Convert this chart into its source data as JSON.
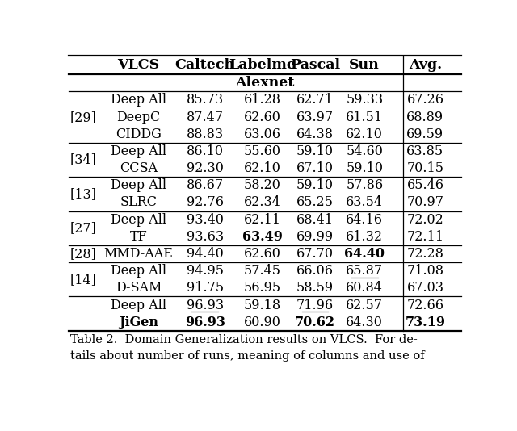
{
  "columns": [
    "VLCS",
    "Caltech",
    "Labelme",
    "Pascal",
    "Sun",
    "Avg."
  ],
  "section_header": "Alexnet",
  "caption": "Table 2.  Domain Generalization results on VLCS.  For de-\ntails about number of runs, meaning of columns and use of",
  "rows": [
    {
      "ref": "",
      "method": "Deep All",
      "caltech": "85.73",
      "labelme": "61.28",
      "pascal": "62.71",
      "sun": "59.33",
      "avg": "67.26",
      "bold_caltech": false,
      "bold_labelme": false,
      "bold_pascal": false,
      "bold_sun": false,
      "bold_avg": false,
      "under_caltech": false,
      "under_labelme": false,
      "under_pascal": false,
      "under_sun": false,
      "under_avg": false,
      "bold_method": false
    },
    {
      "ref": "[29]",
      "method": "DeepC",
      "caltech": "87.47",
      "labelme": "62.60",
      "pascal": "63.97",
      "sun": "61.51",
      "avg": "68.89",
      "bold_caltech": false,
      "bold_labelme": false,
      "bold_pascal": false,
      "bold_sun": false,
      "bold_avg": false,
      "under_caltech": false,
      "under_labelme": false,
      "under_pascal": false,
      "under_sun": false,
      "under_avg": false,
      "bold_method": false
    },
    {
      "ref": "",
      "method": "CIDDG",
      "caltech": "88.83",
      "labelme": "63.06",
      "pascal": "64.38",
      "sun": "62.10",
      "avg": "69.59",
      "bold_caltech": false,
      "bold_labelme": false,
      "bold_pascal": false,
      "bold_sun": false,
      "bold_avg": false,
      "under_caltech": false,
      "under_labelme": false,
      "under_pascal": false,
      "under_sun": false,
      "under_avg": false,
      "bold_method": false
    },
    {
      "ref": "[34]",
      "method": "Deep All",
      "caltech": "86.10",
      "labelme": "55.60",
      "pascal": "59.10",
      "sun": "54.60",
      "avg": "63.85",
      "bold_caltech": false,
      "bold_labelme": false,
      "bold_pascal": false,
      "bold_sun": false,
      "bold_avg": false,
      "under_caltech": false,
      "under_labelme": false,
      "under_pascal": false,
      "under_sun": false,
      "under_avg": false,
      "bold_method": false
    },
    {
      "ref": "",
      "method": "CCSA",
      "caltech": "92.30",
      "labelme": "62.10",
      "pascal": "67.10",
      "sun": "59.10",
      "avg": "70.15",
      "bold_caltech": false,
      "bold_labelme": false,
      "bold_pascal": false,
      "bold_sun": false,
      "bold_avg": false,
      "under_caltech": false,
      "under_labelme": false,
      "under_pascal": false,
      "under_sun": false,
      "under_avg": false,
      "bold_method": false
    },
    {
      "ref": "[13]",
      "method": "Deep All",
      "caltech": "86.67",
      "labelme": "58.20",
      "pascal": "59.10",
      "sun": "57.86",
      "avg": "65.46",
      "bold_caltech": false,
      "bold_labelme": false,
      "bold_pascal": false,
      "bold_sun": false,
      "bold_avg": false,
      "under_caltech": false,
      "under_labelme": false,
      "under_pascal": false,
      "under_sun": false,
      "under_avg": false,
      "bold_method": false
    },
    {
      "ref": "",
      "method": "SLRC",
      "caltech": "92.76",
      "labelme": "62.34",
      "pascal": "65.25",
      "sun": "63.54",
      "avg": "70.97",
      "bold_caltech": false,
      "bold_labelme": false,
      "bold_pascal": false,
      "bold_sun": false,
      "bold_avg": false,
      "under_caltech": false,
      "under_labelme": false,
      "under_pascal": false,
      "under_sun": false,
      "under_avg": false,
      "bold_method": false
    },
    {
      "ref": "[27]",
      "method": "Deep All",
      "caltech": "93.40",
      "labelme": "62.11",
      "pascal": "68.41",
      "sun": "64.16",
      "avg": "72.02",
      "bold_caltech": false,
      "bold_labelme": false,
      "bold_pascal": false,
      "bold_sun": false,
      "bold_avg": false,
      "under_caltech": false,
      "under_labelme": false,
      "under_pascal": false,
      "under_sun": false,
      "under_avg": false,
      "bold_method": false
    },
    {
      "ref": "",
      "method": "TF",
      "caltech": "93.63",
      "labelme": "63.49",
      "pascal": "69.99",
      "sun": "61.32",
      "avg": "72.11",
      "bold_caltech": false,
      "bold_labelme": true,
      "bold_pascal": false,
      "bold_sun": false,
      "bold_avg": false,
      "under_caltech": false,
      "under_labelme": false,
      "under_pascal": false,
      "under_sun": false,
      "under_avg": false,
      "bold_method": false
    },
    {
      "ref": "[28]",
      "method": "MMD-AAE",
      "caltech": "94.40",
      "labelme": "62.60",
      "pascal": "67.70",
      "sun": "64.40",
      "avg": "72.28",
      "bold_caltech": false,
      "bold_labelme": false,
      "bold_pascal": false,
      "bold_sun": true,
      "bold_avg": false,
      "under_caltech": false,
      "under_labelme": false,
      "under_pascal": false,
      "under_sun": false,
      "under_avg": false,
      "bold_method": false
    },
    {
      "ref": "[14]",
      "method": "Deep All",
      "caltech": "94.95",
      "labelme": "57.45",
      "pascal": "66.06",
      "sun": "65.87",
      "avg": "71.08",
      "bold_caltech": false,
      "bold_labelme": false,
      "bold_pascal": false,
      "bold_sun": false,
      "bold_avg": false,
      "under_caltech": false,
      "under_labelme": false,
      "under_pascal": false,
      "under_sun": true,
      "under_avg": false,
      "bold_method": false
    },
    {
      "ref": "",
      "method": "D-SAM",
      "caltech": "91.75",
      "labelme": "56.95",
      "pascal": "58.59",
      "sun": "60.84",
      "avg": "67.03",
      "bold_caltech": false,
      "bold_labelme": false,
      "bold_pascal": false,
      "bold_sun": false,
      "bold_avg": false,
      "under_caltech": false,
      "under_labelme": false,
      "under_pascal": false,
      "under_sun": false,
      "under_avg": false,
      "bold_method": false
    },
    {
      "ref": "",
      "method": "Deep All",
      "caltech": "96.93",
      "labelme": "59.18",
      "pascal": "71.96",
      "sun": "62.57",
      "avg": "72.66",
      "bold_caltech": false,
      "bold_labelme": false,
      "bold_pascal": false,
      "bold_sun": false,
      "bold_avg": false,
      "under_caltech": true,
      "under_labelme": false,
      "under_pascal": true,
      "under_sun": false,
      "under_avg": false,
      "bold_method": false
    },
    {
      "ref": "",
      "method": "JiGen",
      "caltech": "96.93",
      "labelme": "60.90",
      "pascal": "70.62",
      "sun": "64.30",
      "avg": "73.19",
      "bold_caltech": true,
      "bold_labelme": false,
      "bold_pascal": true,
      "bold_sun": false,
      "bold_avg": true,
      "under_caltech": false,
      "under_labelme": false,
      "under_pascal": false,
      "under_sun": false,
      "under_avg": false,
      "bold_method": true
    }
  ],
  "group_separators_after": [
    2,
    4,
    6,
    8,
    9,
    11
  ],
  "ref_row": {
    "0": "",
    "1": "[29]",
    "2": "",
    "3": "[34]",
    "4": "",
    "5": "[13]",
    "6": "",
    "7": "[27]",
    "8": "",
    "9": "[28]",
    "10": "[14]",
    "11": "",
    "12": "",
    "13": ""
  },
  "ref_vcentered": {
    "0_2": 1,
    "3_4": 3,
    "5_6": 5,
    "7_8": 7,
    "9": 9,
    "10_11": 10,
    "12_13": 12
  },
  "bg_color": "#ffffff",
  "text_color": "#000000",
  "fontsize": 11.5,
  "header_fontsize": 12.5,
  "caption_fontsize": 10.5
}
